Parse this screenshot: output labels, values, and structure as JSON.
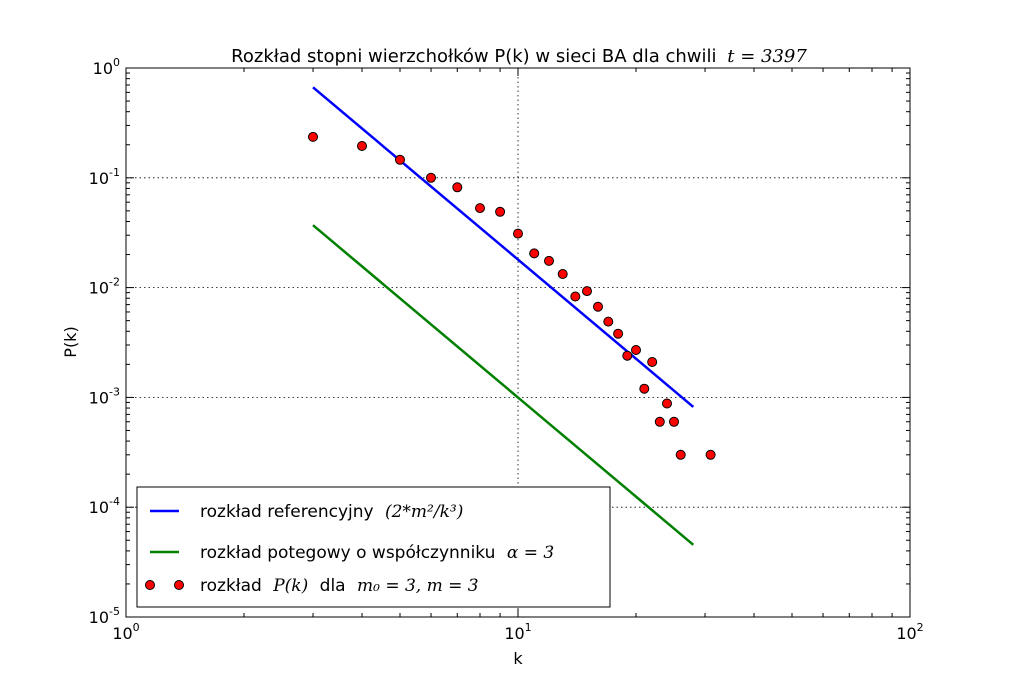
{
  "chart_data": {
    "type": "scatter",
    "title": "Rozkład stopni wierzchołków P(k) w sieci BA dla chwili",
    "title_math": "t = 3397",
    "xlabel": "k",
    "ylabel": "P(k)",
    "xscale": "log",
    "yscale": "log",
    "xlim": [
      1,
      100
    ],
    "ylim": [
      1e-05,
      1
    ],
    "x_ticks": [
      {
        "base": "10",
        "exp": "0",
        "value": 1
      },
      {
        "base": "10",
        "exp": "1",
        "value": 10
      },
      {
        "base": "10",
        "exp": "2",
        "value": 100
      }
    ],
    "y_ticks": [
      {
        "base": "10",
        "exp": "0",
        "value": 1
      },
      {
        "base": "10",
        "exp": "-1",
        "value": 0.1
      },
      {
        "base": "10",
        "exp": "-2",
        "value": 0.01
      },
      {
        "base": "10",
        "exp": "-3",
        "value": 0.001
      },
      {
        "base": "10",
        "exp": "-4",
        "value": 0.0001
      },
      {
        "base": "10",
        "exp": "-5",
        "value": 1e-05
      }
    ],
    "grid": true,
    "legend_position": "lower-left",
    "series": [
      {
        "kind": "line",
        "color": "#0000ff",
        "legend_text": "rozkład referencyjny",
        "legend_math": "(2*m²/k³)",
        "x": [
          3,
          28
        ],
        "y": [
          0.667,
          0.00082
        ]
      },
      {
        "kind": "line",
        "color": "#008000",
        "legend_text": "rozkład potegowy o współczynniku",
        "legend_math": "α = 3",
        "x": [
          3,
          28
        ],
        "y": [
          0.037,
          4.55e-05
        ]
      },
      {
        "kind": "points",
        "color": "#ff0000",
        "legend_text": "rozkład",
        "legend_math": "P(k)",
        "legend_mid": "dla",
        "legend_math2": "m₀ = 3, m = 3",
        "x": [
          3,
          4,
          5,
          6,
          7,
          8,
          9,
          10,
          11,
          12,
          13,
          14,
          15,
          16,
          17,
          18,
          19,
          20,
          21,
          22,
          23,
          24,
          25,
          26,
          31
        ],
        "y": [
          0.236,
          0.195,
          0.146,
          0.1,
          0.082,
          0.053,
          0.049,
          0.031,
          0.0205,
          0.0175,
          0.0133,
          0.0083,
          0.0093,
          0.0067,
          0.0049,
          0.0038,
          0.0024,
          0.0027,
          0.0012,
          0.0021,
          0.0006,
          0.00088,
          0.0006,
          0.0003,
          0.0003
        ]
      }
    ]
  }
}
